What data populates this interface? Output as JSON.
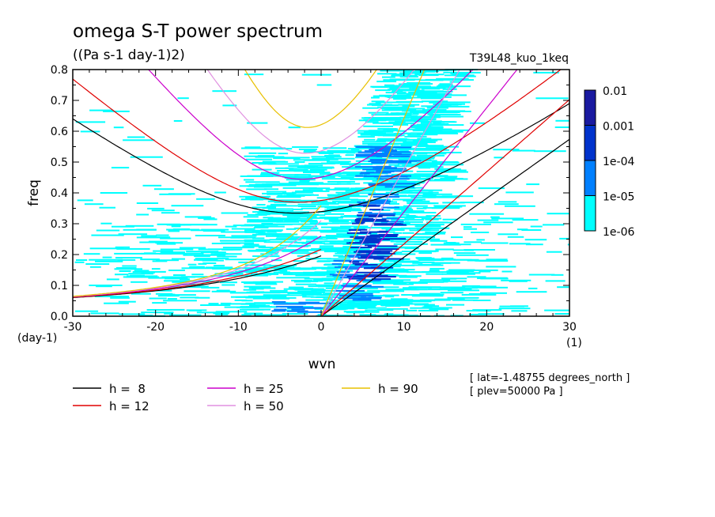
{
  "chart_data": {
    "type": "heatmap",
    "title": "omega S-T power spectrum",
    "subtitle": "((Pa s-1 day-1)2)",
    "run_label": "T39L48_kuo_1keq",
    "xlabel": "wvn",
    "ylabel": "freq",
    "x_unit": "(1)",
    "y_unit": "(day-1)",
    "xlim": [
      -30,
      30
    ],
    "ylim": [
      0,
      0.8
    ],
    "x_ticks": [
      -30,
      -20,
      -10,
      0,
      10,
      20,
      30
    ],
    "x_tick_labels": [
      "-30",
      "-20",
      "-10",
      "0",
      "10",
      "20",
      "30"
    ],
    "y_ticks": [
      0,
      0.1,
      0.2,
      0.3,
      0.4,
      0.5,
      0.6,
      0.7,
      0.8
    ],
    "y_tick_labels": [
      "0.0",
      "0.1",
      "0.2",
      "0.3",
      "0.4",
      "0.5",
      "0.6",
      "0.7",
      "0.8"
    ],
    "colorbar": {
      "levels": [
        {
          "label": "1e-06",
          "color": "#00ffff"
        },
        {
          "label": "1e-05",
          "color": "#0080ff"
        },
        {
          "label": "1e-04",
          "color": "#0033cc"
        },
        {
          "label": "0.001",
          "color": "#1a1aa0"
        },
        {
          "label": "0.01",
          "color": "#5010a8"
        }
      ]
    },
    "dispersion_curves": [
      {
        "label": "h =  8",
        "h": 8,
        "color": "#000000"
      },
      {
        "label": "h = 12",
        "h": 12,
        "color": "#e00000"
      },
      {
        "label": "h = 25",
        "h": 25,
        "color": "#cc00cc"
      },
      {
        "label": "h = 50",
        "h": 50,
        "color": "#e090e0"
      },
      {
        "label": "h = 90",
        "h": 90,
        "color": "#e8c000"
      }
    ],
    "heatmap_regions": [
      {
        "x0": 3,
        "x1": 7,
        "y0": 0.12,
        "y1": 0.36,
        "level": 2
      },
      {
        "x0": 1,
        "x1": 5,
        "y0": 0.05,
        "y1": 0.2,
        "level": 1
      },
      {
        "x0": 4,
        "x1": 8,
        "y0": 0.3,
        "y1": 0.55,
        "level": 1
      },
      {
        "x0": -6,
        "x1": -2,
        "y0": 0.0,
        "y1": 0.06,
        "level": 1
      }
    ],
    "annotations": [
      "[ lat=-1.48755 degrees_north ]",
      "[ plev=50000 Pa ]"
    ]
  }
}
